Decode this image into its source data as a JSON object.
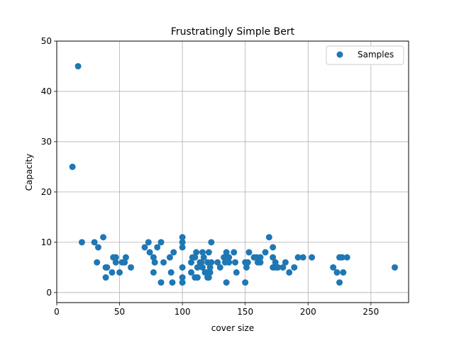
{
  "chart_data": {
    "type": "scatter",
    "title": "Frustratingly Simple Bert",
    "xlabel": "cover size",
    "ylabel": "Capacity",
    "xlim": [
      0,
      280
    ],
    "ylim": [
      -2,
      50
    ],
    "xticks": [
      0,
      50,
      100,
      150,
      200,
      250
    ],
    "yticks": [
      0,
      10,
      20,
      30,
      40,
      50
    ],
    "grid": true,
    "legend_position": "top-right",
    "marker_color": "#1f77b4",
    "series": [
      {
        "name": "Samples",
        "points": [
          [
            12.5,
            25
          ],
          [
            17,
            45
          ],
          [
            20,
            10
          ],
          [
            30,
            10
          ],
          [
            32,
            6
          ],
          [
            33,
            9
          ],
          [
            37,
            11
          ],
          [
            39,
            5
          ],
          [
            39,
            3
          ],
          [
            40,
            5
          ],
          [
            44,
            4
          ],
          [
            45,
            7
          ],
          [
            47,
            6
          ],
          [
            47,
            7
          ],
          [
            50,
            4
          ],
          [
            52,
            6
          ],
          [
            54,
            6
          ],
          [
            55,
            7
          ],
          [
            59,
            5
          ],
          [
            70,
            9
          ],
          [
            73,
            10
          ],
          [
            74,
            8
          ],
          [
            77,
            7
          ],
          [
            77,
            4
          ],
          [
            78,
            6
          ],
          [
            80,
            9
          ],
          [
            83,
            10
          ],
          [
            83,
            2
          ],
          [
            85,
            6
          ],
          [
            90,
            7
          ],
          [
            91,
            4
          ],
          [
            92,
            2
          ],
          [
            93,
            8
          ],
          [
            100,
            11
          ],
          [
            100,
            10
          ],
          [
            100,
            9
          ],
          [
            100,
            5
          ],
          [
            100,
            3
          ],
          [
            100,
            2
          ],
          [
            107,
            4
          ],
          [
            107,
            6
          ],
          [
            108,
            7
          ],
          [
            110,
            7
          ],
          [
            110,
            3
          ],
          [
            111,
            8
          ],
          [
            112,
            5
          ],
          [
            112,
            3
          ],
          [
            114,
            6
          ],
          [
            115,
            6
          ],
          [
            116,
            5
          ],
          [
            116,
            8
          ],
          [
            117,
            7
          ],
          [
            118,
            4
          ],
          [
            119,
            4
          ],
          [
            120,
            6
          ],
          [
            120,
            3
          ],
          [
            121,
            8
          ],
          [
            121,
            3
          ],
          [
            122,
            4
          ],
          [
            122,
            5
          ],
          [
            123,
            6
          ],
          [
            123,
            10
          ],
          [
            128,
            6
          ],
          [
            130,
            5
          ],
          [
            133,
            7
          ],
          [
            134,
            6
          ],
          [
            135,
            8
          ],
          [
            135,
            2
          ],
          [
            137,
            7
          ],
          [
            137,
            6
          ],
          [
            141,
            8
          ],
          [
            142,
            6
          ],
          [
            143,
            4
          ],
          [
            150,
            6
          ],
          [
            150,
            2
          ],
          [
            151,
            5
          ],
          [
            152,
            6
          ],
          [
            153,
            8
          ],
          [
            157,
            7
          ],
          [
            159,
            7
          ],
          [
            160,
            6
          ],
          [
            162,
            7
          ],
          [
            162,
            6
          ],
          [
            166,
            8
          ],
          [
            169,
            11
          ],
          [
            172,
            9
          ],
          [
            172,
            7
          ],
          [
            172,
            5
          ],
          [
            174,
            5
          ],
          [
            174,
            6
          ],
          [
            176,
            5
          ],
          [
            180,
            5
          ],
          [
            182,
            6
          ],
          [
            185,
            4
          ],
          [
            189,
            5
          ],
          [
            192,
            7
          ],
          [
            196,
            7
          ],
          [
            203,
            7
          ],
          [
            220,
            5
          ],
          [
            223,
            4
          ],
          [
            225,
            7
          ],
          [
            225,
            2
          ],
          [
            227,
            7
          ],
          [
            228,
            4
          ],
          [
            231,
            7
          ],
          [
            269,
            5
          ]
        ]
      }
    ]
  }
}
